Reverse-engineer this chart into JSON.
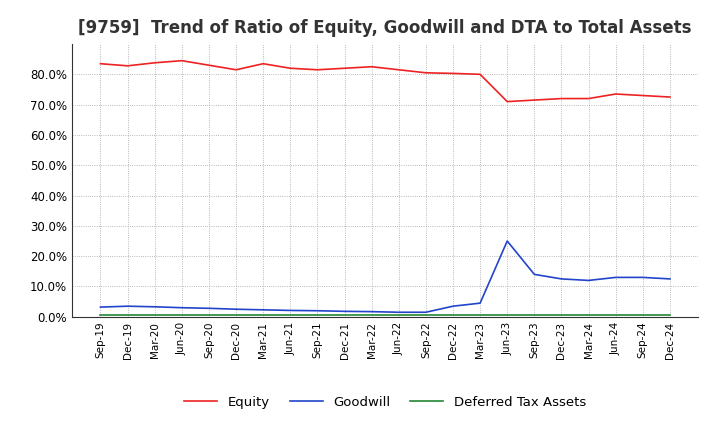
{
  "title": "[9759]  Trend of Ratio of Equity, Goodwill and DTA to Total Assets",
  "title_fontsize": 12,
  "title_color": "#333333",
  "background_color": "#ffffff",
  "plot_background": "#ffffff",
  "grid_color": "#999999",
  "dates": [
    "Sep-19",
    "Dec-19",
    "Mar-20",
    "Jun-20",
    "Sep-20",
    "Dec-20",
    "Mar-21",
    "Jun-21",
    "Sep-21",
    "Dec-21",
    "Mar-22",
    "Jun-22",
    "Sep-22",
    "Dec-22",
    "Mar-23",
    "Jun-23",
    "Sep-23",
    "Dec-23",
    "Mar-24",
    "Jun-24",
    "Sep-24",
    "Dec-24"
  ],
  "equity": [
    83.5,
    82.8,
    83.8,
    84.5,
    83.0,
    81.5,
    83.5,
    82.0,
    81.5,
    82.0,
    82.5,
    81.5,
    80.5,
    80.3,
    80.0,
    71.0,
    71.5,
    72.0,
    72.0,
    73.5,
    73.0,
    72.5
  ],
  "goodwill": [
    3.2,
    3.5,
    3.3,
    3.0,
    2.8,
    2.5,
    2.3,
    2.1,
    2.0,
    1.8,
    1.7,
    1.5,
    1.5,
    3.5,
    4.5,
    25.0,
    14.0,
    12.5,
    12.0,
    13.0,
    13.0,
    12.5
  ],
  "dta": [
    0.5,
    0.5,
    0.5,
    0.5,
    0.5,
    0.5,
    0.5,
    0.5,
    0.5,
    0.5,
    0.5,
    0.5,
    0.5,
    0.5,
    0.5,
    0.5,
    0.5,
    0.5,
    0.5,
    0.5,
    0.5,
    0.5
  ],
  "equity_color": "#ee2222",
  "goodwill_color": "#2244cc",
  "dta_color": "#228833",
  "ylim": [
    0,
    90
  ],
  "yticks": [
    0,
    10,
    20,
    30,
    40,
    50,
    60,
    70,
    80
  ],
  "legend_labels": [
    "Equity",
    "Goodwill",
    "Deferred Tax Assets"
  ]
}
